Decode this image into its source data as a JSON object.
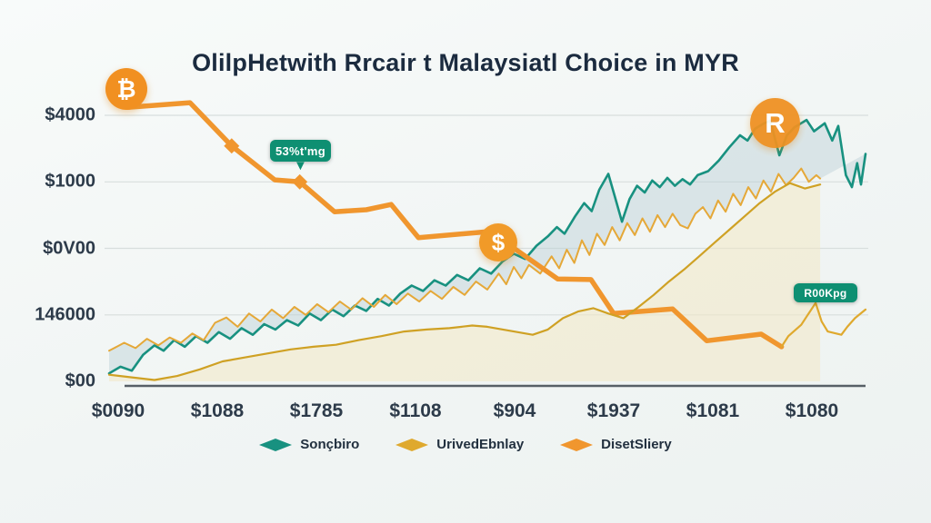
{
  "title": "OlilpHetwith Rrcair t Malaysiatl Choice in MYR",
  "badges": {
    "left_annotation": "53%t'mg",
    "right_annotation": "R00Kpg"
  },
  "icons": {
    "bitcoin_coin_glyph": "₿",
    "r_coin_glyph": "R",
    "dollar_coin_glyph": "$",
    "chevron_down_glyph": "▼",
    "coin_color": "#f19021",
    "badge_color": "#0e8f72"
  },
  "legend": {
    "items": [
      {
        "label": "Sonçbiro",
        "color": "#189180"
      },
      {
        "label": "UrivedEbnlay",
        "color": "#dfa92e"
      },
      {
        "label": "DisetSliery",
        "color": "#f0962e"
      }
    ]
  },
  "chart_data": {
    "type": "line",
    "title": "OlilpHetwith Rrcair t Malaysiatl Choice in MYR",
    "xlabel": "",
    "ylabel": "",
    "grid": true,
    "legend_position": "bottom",
    "x_domain": [
      0,
      100
    ],
    "y_tick_labels": [
      "$4000",
      "$1000",
      "$0V00",
      "146000",
      "$00"
    ],
    "y_tick_values": [
      4,
      3,
      2,
      1,
      0
    ],
    "x_tick_labels": [
      "$0090",
      "$1088",
      "$1785",
      "$1108",
      "$904",
      "$1937",
      "$1081",
      "$1080"
    ],
    "series": [
      {
        "name": "Sonçbiro",
        "color": "#189180",
        "width": 2.6,
        "in_legend": true,
        "points": [
          [
            0,
            0.12
          ],
          [
            1.5,
            0.22
          ],
          [
            3,
            0.16
          ],
          [
            4.5,
            0.4
          ],
          [
            6,
            0.54
          ],
          [
            7.2,
            0.46
          ],
          [
            8.6,
            0.62
          ],
          [
            10,
            0.52
          ],
          [
            11.5,
            0.68
          ],
          [
            13,
            0.58
          ],
          [
            14.5,
            0.74
          ],
          [
            16,
            0.64
          ],
          [
            17.5,
            0.8
          ],
          [
            19,
            0.7
          ],
          [
            20.5,
            0.86
          ],
          [
            22,
            0.78
          ],
          [
            23.5,
            0.92
          ],
          [
            25,
            0.84
          ],
          [
            26.5,
            1.02
          ],
          [
            28,
            0.92
          ],
          [
            29.5,
            1.08
          ],
          [
            31,
            0.98
          ],
          [
            32.5,
            1.14
          ],
          [
            34,
            1.06
          ],
          [
            35.5,
            1.24
          ],
          [
            37,
            1.14
          ],
          [
            38.5,
            1.32
          ],
          [
            40,
            1.44
          ],
          [
            41.5,
            1.36
          ],
          [
            43,
            1.52
          ],
          [
            44.5,
            1.44
          ],
          [
            46,
            1.6
          ],
          [
            47.5,
            1.52
          ],
          [
            49,
            1.7
          ],
          [
            50.5,
            1.62
          ],
          [
            52,
            1.8
          ],
          [
            53.5,
            1.92
          ],
          [
            55,
            1.84
          ],
          [
            56.5,
            2.04
          ],
          [
            58,
            2.18
          ],
          [
            59.2,
            2.32
          ],
          [
            60.2,
            2.22
          ],
          [
            61.6,
            2.48
          ],
          [
            62.8,
            2.68
          ],
          [
            63.8,
            2.56
          ],
          [
            64.8,
            2.88
          ],
          [
            66,
            3.12
          ],
          [
            66.8,
            2.8
          ],
          [
            67.8,
            2.4
          ],
          [
            68.8,
            2.74
          ],
          [
            69.8,
            2.94
          ],
          [
            70.8,
            2.84
          ],
          [
            71.8,
            3.02
          ],
          [
            72.8,
            2.92
          ],
          [
            73.8,
            3.06
          ],
          [
            74.8,
            2.94
          ],
          [
            75.8,
            3.04
          ],
          [
            76.8,
            2.96
          ],
          [
            77.8,
            3.1
          ],
          [
            79.2,
            3.16
          ],
          [
            80.6,
            3.32
          ],
          [
            82,
            3.52
          ],
          [
            83.4,
            3.7
          ],
          [
            84.4,
            3.62
          ],
          [
            85.4,
            3.8
          ],
          [
            86.6,
            3.88
          ],
          [
            87.4,
            3.92
          ],
          [
            88.6,
            3.4
          ],
          [
            89.6,
            3.7
          ],
          [
            90.6,
            3.82
          ],
          [
            92.2,
            3.93
          ],
          [
            93.2,
            3.76
          ],
          [
            94.6,
            3.88
          ],
          [
            95.6,
            3.62
          ],
          [
            96.4,
            3.84
          ],
          [
            97.4,
            3.1
          ],
          [
            98.2,
            2.92
          ],
          [
            98.9,
            3.28
          ],
          [
            99.4,
            2.96
          ],
          [
            100,
            3.42
          ]
        ]
      },
      {
        "name": "UrivedEbnlay",
        "color": "#e5a838",
        "width": 2,
        "in_legend": true,
        "points": [
          [
            0,
            0.46
          ],
          [
            2,
            0.58
          ],
          [
            3.5,
            0.5
          ],
          [
            5,
            0.64
          ],
          [
            6.5,
            0.54
          ],
          [
            8,
            0.66
          ],
          [
            9.5,
            0.58
          ],
          [
            11,
            0.72
          ],
          [
            12.5,
            0.62
          ],
          [
            14,
            0.88
          ],
          [
            15.5,
            0.96
          ],
          [
            17,
            0.82
          ],
          [
            18.5,
            1.02
          ],
          [
            20,
            0.9
          ],
          [
            21.5,
            1.08
          ],
          [
            23,
            0.95
          ],
          [
            24.5,
            1.12
          ],
          [
            26,
            1.0
          ],
          [
            27.5,
            1.16
          ],
          [
            29,
            1.04
          ],
          [
            30.5,
            1.2
          ],
          [
            32,
            1.08
          ],
          [
            33.5,
            1.25
          ],
          [
            35,
            1.12
          ],
          [
            36.5,
            1.3
          ],
          [
            38,
            1.16
          ],
          [
            39.5,
            1.32
          ],
          [
            41,
            1.2
          ],
          [
            42.5,
            1.36
          ],
          [
            44,
            1.24
          ],
          [
            45.5,
            1.42
          ],
          [
            47,
            1.3
          ],
          [
            48.5,
            1.5
          ],
          [
            50,
            1.38
          ],
          [
            51.5,
            1.62
          ],
          [
            52.5,
            1.46
          ],
          [
            53.5,
            1.72
          ],
          [
            54.5,
            1.55
          ],
          [
            55.5,
            1.75
          ],
          [
            57,
            1.62
          ],
          [
            58.5,
            1.88
          ],
          [
            59.5,
            1.7
          ],
          [
            60.5,
            1.98
          ],
          [
            61.5,
            1.78
          ],
          [
            62.5,
            2.12
          ],
          [
            63.5,
            1.9
          ],
          [
            64.5,
            2.22
          ],
          [
            65.5,
            2.05
          ],
          [
            66.5,
            2.32
          ],
          [
            67.5,
            2.12
          ],
          [
            68.5,
            2.38
          ],
          [
            69.5,
            2.2
          ],
          [
            70.5,
            2.45
          ],
          [
            71.5,
            2.25
          ],
          [
            72.5,
            2.5
          ],
          [
            73.5,
            2.32
          ],
          [
            74.5,
            2.52
          ],
          [
            75.5,
            2.35
          ],
          [
            76.5,
            2.3
          ],
          [
            77.5,
            2.52
          ],
          [
            78.5,
            2.62
          ],
          [
            79.5,
            2.45
          ],
          [
            80.5,
            2.72
          ],
          [
            81.5,
            2.55
          ],
          [
            82.5,
            2.82
          ],
          [
            83.5,
            2.65
          ],
          [
            84.5,
            2.92
          ],
          [
            85.5,
            2.75
          ],
          [
            86.5,
            3.02
          ],
          [
            87.5,
            2.85
          ],
          [
            88.5,
            3.12
          ],
          [
            89.5,
            2.95
          ],
          [
            90.5,
            3.06
          ],
          [
            91.5,
            3.2
          ],
          [
            92.5,
            3.0
          ],
          [
            93.5,
            3.1
          ],
          [
            94,
            3.05
          ]
        ]
      },
      {
        "name": "DisetSliery",
        "color": "#f0962e",
        "width": 5.5,
        "in_legend": true,
        "points": [
          [
            2.4,
            4.12
          ],
          [
            10.7,
            4.19
          ],
          [
            16.2,
            3.54
          ],
          [
            21.9,
            3.03
          ],
          [
            25.2,
            3.0
          ],
          [
            29.8,
            2.55
          ],
          [
            34,
            2.58
          ],
          [
            37.3,
            2.66
          ],
          [
            40.9,
            2.16
          ],
          [
            49.9,
            2.25
          ],
          [
            52.9,
            2.05
          ],
          [
            59.3,
            1.54
          ],
          [
            63.7,
            1.53
          ],
          [
            66.7,
            1.02
          ],
          [
            74.5,
            1.09
          ],
          [
            79,
            0.61
          ],
          [
            86.2,
            0.71
          ],
          [
            88.9,
            0.52
          ]
        ],
        "markers": [
          [
            16.2,
            3.54
          ],
          [
            25.2,
            3.0
          ]
        ]
      },
      {
        "name": "gold-secondary",
        "color": "#cfa124",
        "width": 2.2,
        "in_legend": false,
        "points": [
          [
            0,
            0.1
          ],
          [
            3,
            0.06
          ],
          [
            6,
            0.02
          ],
          [
            9,
            0.08
          ],
          [
            12,
            0.18
          ],
          [
            15,
            0.3
          ],
          [
            18,
            0.36
          ],
          [
            21,
            0.42
          ],
          [
            24,
            0.48
          ],
          [
            27,
            0.52
          ],
          [
            30,
            0.55
          ],
          [
            33,
            0.62
          ],
          [
            36,
            0.68
          ],
          [
            39,
            0.75
          ],
          [
            42,
            0.78
          ],
          [
            45,
            0.8
          ],
          [
            48,
            0.84
          ],
          [
            50,
            0.82
          ],
          [
            53,
            0.76
          ],
          [
            56,
            0.7
          ],
          [
            58,
            0.78
          ],
          [
            60,
            0.95
          ],
          [
            62,
            1.05
          ],
          [
            64,
            1.1
          ],
          [
            66,
            1.02
          ],
          [
            68,
            0.95
          ],
          [
            70,
            1.12
          ],
          [
            72,
            1.3
          ],
          [
            74,
            1.5
          ],
          [
            76,
            1.68
          ],
          [
            78,
            1.88
          ],
          [
            80,
            2.08
          ],
          [
            82,
            2.28
          ],
          [
            84,
            2.48
          ],
          [
            86,
            2.68
          ],
          [
            88,
            2.85
          ],
          [
            90,
            2.98
          ],
          [
            92,
            2.9
          ],
          [
            94,
            2.96
          ]
        ]
      },
      {
        "name": "orange-tail",
        "color": "#dfa92e",
        "width": 2.2,
        "in_legend": false,
        "points": [
          [
            88.9,
            0.52
          ],
          [
            89.8,
            0.68
          ],
          [
            91.5,
            0.85
          ],
          [
            93.4,
            1.18
          ],
          [
            94.2,
            0.9
          ],
          [
            95,
            0.75
          ],
          [
            96.8,
            0.7
          ],
          [
            97.6,
            0.82
          ],
          [
            98.6,
            0.95
          ],
          [
            100,
            1.08
          ]
        ]
      }
    ],
    "bands": [
      {
        "type": "between",
        "upper": "Sonçbiro",
        "lower": "UrivedEbnlay",
        "color": "rgba(184,206,213,0.42)"
      },
      {
        "type": "under",
        "series": "gold-secondary",
        "color": "rgba(243,231,197,0.55)"
      }
    ],
    "annotations": [
      {
        "text": "53%t'mg",
        "style": "teal-badge",
        "near_x": 24,
        "near_value": 3.3
      },
      {
        "text": "R00Kpg",
        "style": "teal-badge",
        "near_x": 93,
        "near_value": 1.4
      },
      {
        "icon": "bitcoin",
        "near_x": 2,
        "near_value": 4.3
      },
      {
        "icon": "dollar",
        "near_x": 51,
        "near_value": 2.05
      },
      {
        "icon": "r-coin",
        "near_x": 88,
        "near_value": 3.9
      }
    ]
  }
}
